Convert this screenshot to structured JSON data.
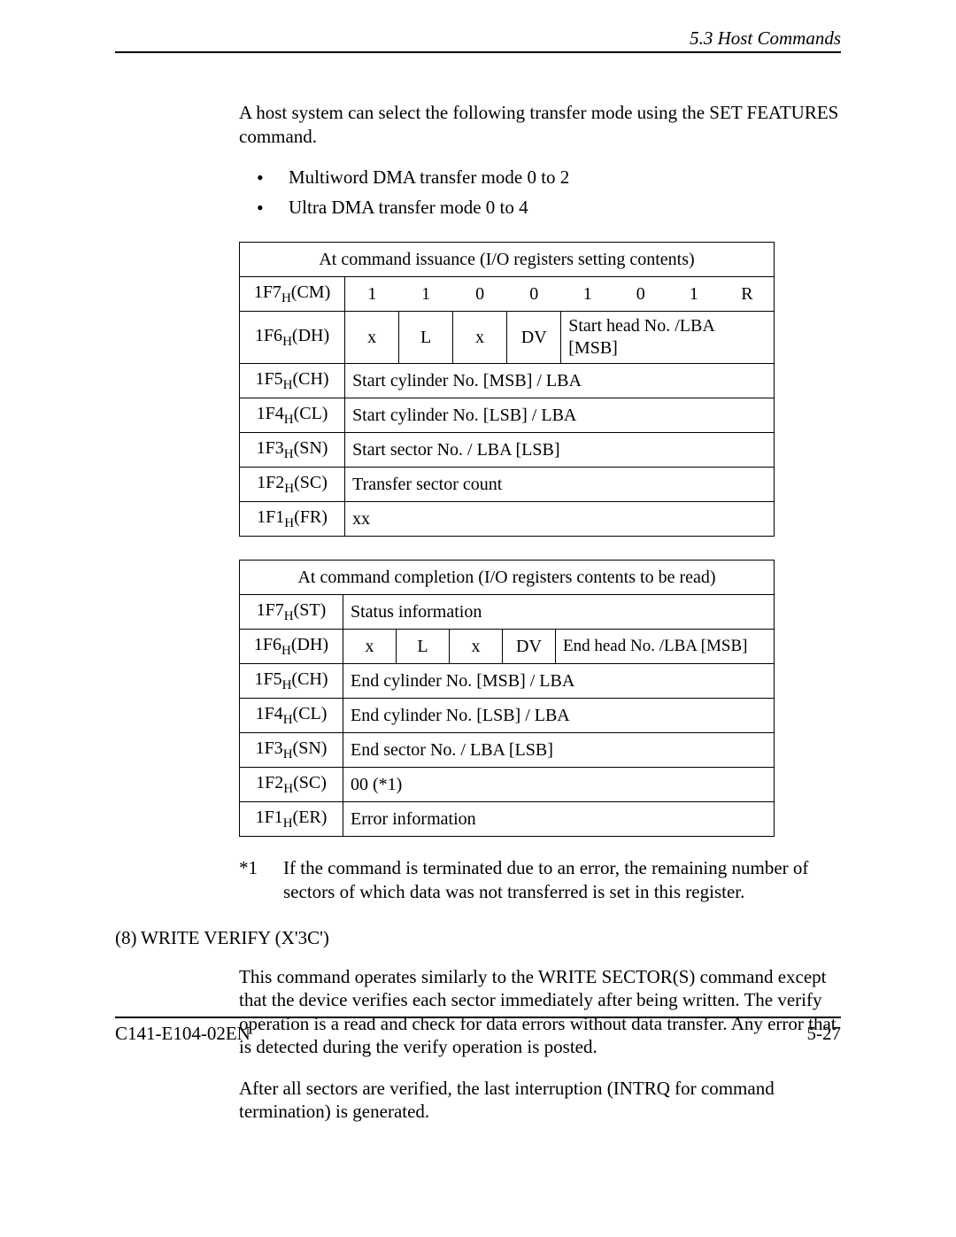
{
  "header": {
    "section": "5.3  Host Commands"
  },
  "intro": "A host system can select the following transfer mode using the SET FEATURES command.",
  "bullets": [
    "Multiword DMA transfer mode 0 to 2",
    "Ultra DMA transfer mode 0 to 4"
  ],
  "table1": {
    "title": "At command issuance (I/O registers setting contents)",
    "rows": {
      "cm": {
        "reg": "1F7",
        "sub": "H",
        "suffix": "(CM)",
        "bits": [
          "1",
          "1",
          "0",
          "0",
          "1",
          "0",
          "1",
          "R"
        ]
      },
      "dh": {
        "reg": "1F6",
        "sub": "H",
        "suffix": "(DH)",
        "b0": "x",
        "b1": "L",
        "b2": "x",
        "b3": "DV",
        "desc": "Start head No. /LBA [MSB]"
      },
      "ch": {
        "reg": "1F5",
        "sub": "H",
        "suffix": "(CH)",
        "desc": "Start cylinder No. [MSB] / LBA"
      },
      "cl": {
        "reg": "1F4",
        "sub": "H",
        "suffix": "(CL)",
        "desc": "Start cylinder No. [LSB] / LBA"
      },
      "sn": {
        "reg": "1F3",
        "sub": "H",
        "suffix": "(SN)",
        "desc": "Start sector No. / LBA [LSB]"
      },
      "sc": {
        "reg": "1F2",
        "sub": "H",
        "suffix": "(SC)",
        "desc": "Transfer sector count"
      },
      "fr": {
        "reg": "1F1",
        "sub": "H",
        "suffix": "(FR)",
        "desc": "xx"
      }
    }
  },
  "table2": {
    "title": "At command completion (I/O registers contents to be read)",
    "rows": {
      "st": {
        "reg": "1F7",
        "sub": "H",
        "suffix": "(ST)",
        "desc": "Status information"
      },
      "dh": {
        "reg": "1F6",
        "sub": "H",
        "suffix": "(DH)",
        "b0": "x",
        "b1": "L",
        "b2": "x",
        "b3": "DV",
        "desc": "End head No. /LBA [MSB]"
      },
      "ch": {
        "reg": "1F5",
        "sub": "H",
        "suffix": "(CH)",
        "desc": "End cylinder No. [MSB] / LBA"
      },
      "cl": {
        "reg": "1F4",
        "sub": "H",
        "suffix": "(CL)",
        "desc": "End cylinder No. [LSB] / LBA"
      },
      "sn": {
        "reg": "1F3",
        "sub": "H",
        "suffix": "(SN)",
        "desc": "End sector No. / LBA [LSB]"
      },
      "sc": {
        "reg": "1F2",
        "sub": "H",
        "suffix": "(SC)",
        "desc": "00 (*1)"
      },
      "er": {
        "reg": "1F1",
        "sub": "H",
        "suffix": "(ER)",
        "desc": "Error information"
      }
    }
  },
  "note1": {
    "mark": "*1",
    "text": "If the command is terminated due to an error, the remaining number of sectors of which data was not transferred is set in this register."
  },
  "section8": {
    "num": "(8)",
    "title": "WRITE VERIFY (X'3C')",
    "p1": "This command operates similarly to the WRITE SECTOR(S) command except that the device verifies each sector immediately after being written.  The verify operation is a read and check for data errors without data transfer.  Any error that is detected during the verify operation is posted.",
    "p2": "After all sectors are verified, the last interruption (INTRQ for command termination) is generated."
  },
  "footer": {
    "left": "C141-E104-02EN",
    "right": "5-27"
  }
}
